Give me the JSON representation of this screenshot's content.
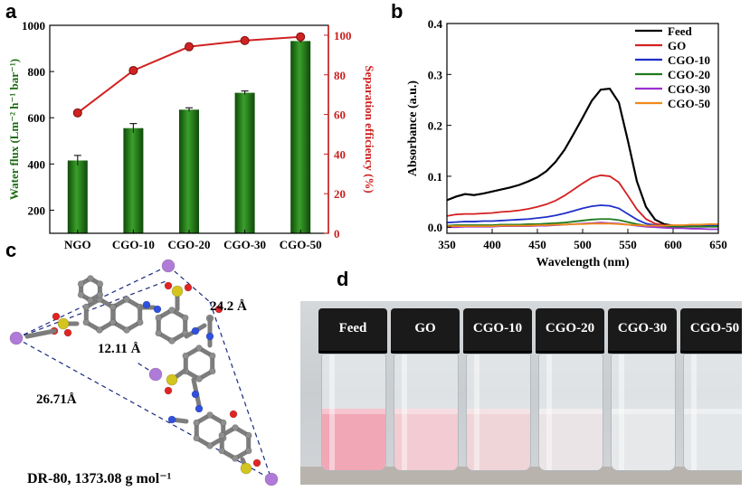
{
  "panels": {
    "a": "a",
    "b": "b",
    "c": "c",
    "d": "d"
  },
  "chart_data": [
    {
      "type": "bar",
      "panel": "a",
      "categories": [
        "NGO",
        "CGO-10",
        "CGO-20",
        "CGO-30",
        "CGO-50"
      ],
      "series": [
        {
          "name": "Water flux",
          "kind": "bar",
          "axis": "left",
          "values": [
            415,
            555,
            635,
            708,
            932
          ],
          "errors": [
            22,
            20,
            8,
            8,
            8
          ]
        },
        {
          "name": "Separation efficiency",
          "kind": "line",
          "axis": "right",
          "values": [
            60.8,
            82.2,
            94.2,
            97.3,
            99.2
          ]
        }
      ],
      "ylabel": "Water flux (Lm⁻² h⁻¹ bar⁻¹)",
      "y2label": "Separation efficiency (%)",
      "ylim": [
        100,
        1000
      ],
      "yticks": [
        200,
        400,
        600,
        800,
        1000
      ],
      "y2lim": [
        0,
        105
      ],
      "y2ticks": [
        0,
        20,
        40,
        60,
        80,
        100
      ],
      "colors": {
        "bar": "#2f8a1f",
        "bar_dark": "#0f4a0a",
        "line": "#d12222",
        "right_axis": "#cc1f1f",
        "left_label": "#1e6b14"
      }
    },
    {
      "type": "line",
      "panel": "b",
      "xlabel": "Wavelength (nm)",
      "ylabel": "Absorbance (a.u.)",
      "xlim": [
        350,
        650
      ],
      "ylim": [
        -0.012,
        0.4
      ],
      "xticks": [
        350,
        400,
        450,
        500,
        550,
        600,
        650
      ],
      "yticks": [
        0.0,
        0.1,
        0.2,
        0.3,
        0.4
      ],
      "ytick_labels": [
        "0.0",
        "0.1",
        "0.2",
        "0.3",
        "0.4"
      ],
      "x": [
        350,
        360,
        370,
        380,
        390,
        400,
        410,
        420,
        430,
        440,
        450,
        460,
        470,
        480,
        490,
        500,
        510,
        520,
        530,
        540,
        550,
        560,
        570,
        580,
        590,
        600,
        610,
        620,
        630,
        640,
        650
      ],
      "series": [
        {
          "name": "Feed",
          "color": "#000000",
          "values": [
            0.053,
            0.06,
            0.065,
            0.063,
            0.066,
            0.07,
            0.074,
            0.078,
            0.083,
            0.09,
            0.098,
            0.11,
            0.128,
            0.152,
            0.183,
            0.215,
            0.248,
            0.27,
            0.272,
            0.245,
            0.17,
            0.09,
            0.04,
            0.015,
            0.006,
            0.003,
            0.002,
            0.002,
            0.002,
            0.002,
            0.002
          ]
        },
        {
          "name": "GO",
          "color": "#d42020",
          "values": [
            0.022,
            0.025,
            0.026,
            0.026,
            0.027,
            0.028,
            0.03,
            0.031,
            0.033,
            0.036,
            0.04,
            0.045,
            0.052,
            0.062,
            0.074,
            0.086,
            0.097,
            0.102,
            0.1,
            0.088,
            0.062,
            0.035,
            0.016,
            0.007,
            0.004,
            0.003,
            0.002,
            0.002,
            0.002,
            0.002,
            0.002
          ]
        },
        {
          "name": "CGO-10",
          "color": "#1f2fc8",
          "values": [
            0.009,
            0.01,
            0.011,
            0.011,
            0.012,
            0.012,
            0.013,
            0.014,
            0.015,
            0.016,
            0.018,
            0.02,
            0.023,
            0.027,
            0.032,
            0.037,
            0.041,
            0.043,
            0.042,
            0.037,
            0.026,
            0.015,
            0.007,
            0.004,
            0.003,
            0.003,
            0.003,
            0.003,
            0.003,
            0.003,
            0.003
          ]
        },
        {
          "name": "CGO-20",
          "color": "#1e7a1e",
          "values": [
            0.003,
            0.004,
            0.004,
            0.004,
            0.004,
            0.004,
            0.005,
            0.005,
            0.005,
            0.006,
            0.006,
            0.007,
            0.008,
            0.009,
            0.011,
            0.013,
            0.015,
            0.016,
            0.016,
            0.014,
            0.01,
            0.006,
            0.003,
            0.002,
            0.001,
            0.001,
            0.001,
            0.001,
            0.001,
            0.001,
            0.001
          ]
        },
        {
          "name": "CGO-30",
          "color": "#9a2fd0",
          "values": [
            0.0,
            0.0,
            0.001,
            0.001,
            0.001,
            0.001,
            0.002,
            0.002,
            0.002,
            0.002,
            0.003,
            0.003,
            0.004,
            0.005,
            0.006,
            0.007,
            0.008,
            0.009,
            0.008,
            0.007,
            0.005,
            0.003,
            0.001,
            0.0,
            -0.001,
            -0.002,
            -0.002,
            -0.003,
            -0.003,
            -0.004,
            -0.004
          ]
        },
        {
          "name": "CGO-50",
          "color": "#f08a1a",
          "values": [
            0.002,
            0.002,
            0.002,
            0.002,
            0.002,
            0.002,
            0.003,
            0.003,
            0.003,
            0.003,
            0.004,
            0.004,
            0.005,
            0.005,
            0.006,
            0.006,
            0.007,
            0.007,
            0.007,
            0.006,
            0.005,
            0.004,
            0.003,
            0.003,
            0.003,
            0.004,
            0.004,
            0.005,
            0.005,
            0.006,
            0.006
          ]
        }
      ]
    }
  ],
  "molecule": {
    "caption": "DR-80, 1373.08 g mol⁻¹",
    "distances": [
      "24.2 Å",
      "12.11 Å",
      "26.71Å"
    ]
  },
  "photo": {
    "vials": [
      {
        "label": "Feed",
        "color": "#f2a7b6"
      },
      {
        "label": "GO",
        "color": "#f3cbd2"
      },
      {
        "label": "CGO-10",
        "color": "#efd4d8"
      },
      {
        "label": "CGO-20",
        "color": "#ebe4e6"
      },
      {
        "label": "CGO-30",
        "color": "#e6e8ea"
      },
      {
        "label": "CGO-50",
        "color": "#e4e7e9"
      }
    ]
  }
}
